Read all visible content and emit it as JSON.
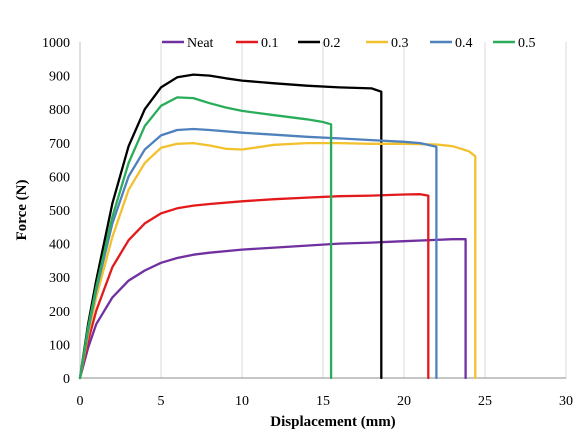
{
  "chart_data": {
    "type": "line",
    "title": "",
    "xlabel": "Displacement (mm)",
    "ylabel": "Force (N)",
    "xlim": [
      0,
      30
    ],
    "ylim": [
      0,
      1000
    ],
    "xticks": [
      0,
      5,
      10,
      15,
      20,
      25,
      30
    ],
    "yticks": [
      0,
      100,
      200,
      300,
      400,
      500,
      600,
      700,
      800,
      900,
      1000
    ],
    "grid": "vertical",
    "legend_position": "top",
    "series": [
      {
        "name": "Neat",
        "color": "#7030a0",
        "points": [
          [
            0,
            0
          ],
          [
            0.5,
            90
          ],
          [
            1,
            160
          ],
          [
            2,
            240
          ],
          [
            3,
            290
          ],
          [
            4,
            320
          ],
          [
            5,
            343
          ],
          [
            6,
            357
          ],
          [
            7,
            367
          ],
          [
            8,
            373
          ],
          [
            10,
            382
          ],
          [
            12,
            388
          ],
          [
            14,
            394
          ],
          [
            16,
            400
          ],
          [
            18,
            403
          ],
          [
            20,
            407
          ],
          [
            22,
            411
          ],
          [
            23,
            413
          ],
          [
            23.8,
            413
          ],
          [
            23.8,
            0
          ]
        ]
      },
      {
        "name": "0.1",
        "color": "#e31a1c",
        "points": [
          [
            0,
            0
          ],
          [
            0.5,
            110
          ],
          [
            1,
            200
          ],
          [
            2,
            330
          ],
          [
            3,
            410
          ],
          [
            4,
            460
          ],
          [
            5,
            490
          ],
          [
            6,
            505
          ],
          [
            7,
            513
          ],
          [
            8,
            518
          ],
          [
            10,
            526
          ],
          [
            12,
            532
          ],
          [
            14,
            537
          ],
          [
            16,
            541
          ],
          [
            18,
            543
          ],
          [
            20,
            546
          ],
          [
            21,
            547
          ],
          [
            21.5,
            543
          ],
          [
            21.5,
            0
          ]
        ]
      },
      {
        "name": "0.2",
        "color": "#000000",
        "points": [
          [
            0,
            0
          ],
          [
            0.5,
            160
          ],
          [
            1,
            290
          ],
          [
            2,
            520
          ],
          [
            3,
            690
          ],
          [
            4,
            800
          ],
          [
            5,
            865
          ],
          [
            6,
            895
          ],
          [
            7,
            903
          ],
          [
            8,
            900
          ],
          [
            9,
            892
          ],
          [
            10,
            885
          ],
          [
            12,
            877
          ],
          [
            14,
            870
          ],
          [
            16,
            865
          ],
          [
            18,
            862
          ],
          [
            18.6,
            852
          ],
          [
            18.6,
            0
          ]
        ]
      },
      {
        "name": "0.3",
        "color": "#f2c12e",
        "points": [
          [
            0,
            0
          ],
          [
            0.5,
            130
          ],
          [
            1,
            240
          ],
          [
            2,
            420
          ],
          [
            3,
            560
          ],
          [
            4,
            640
          ],
          [
            5,
            685
          ],
          [
            6,
            697
          ],
          [
            7,
            699
          ],
          [
            8,
            692
          ],
          [
            9,
            682
          ],
          [
            10,
            680
          ],
          [
            11,
            687
          ],
          [
            12,
            694
          ],
          [
            14,
            699
          ],
          [
            16,
            699
          ],
          [
            18,
            697
          ],
          [
            20,
            697
          ],
          [
            22,
            695
          ],
          [
            23,
            690
          ],
          [
            24,
            675
          ],
          [
            24.4,
            660
          ],
          [
            24.4,
            0
          ]
        ]
      },
      {
        "name": "0.4",
        "color": "#4f81bd",
        "points": [
          [
            0,
            0
          ],
          [
            0.5,
            140
          ],
          [
            1,
            260
          ],
          [
            2,
            460
          ],
          [
            3,
            600
          ],
          [
            4,
            680
          ],
          [
            5,
            722
          ],
          [
            6,
            738
          ],
          [
            7,
            741
          ],
          [
            8,
            738
          ],
          [
            10,
            730
          ],
          [
            12,
            724
          ],
          [
            14,
            718
          ],
          [
            16,
            713
          ],
          [
            18,
            708
          ],
          [
            20,
            703
          ],
          [
            21,
            699
          ],
          [
            22,
            688
          ],
          [
            22,
            0
          ]
        ]
      },
      {
        "name": "0.5",
        "color": "#2aad5a",
        "points": [
          [
            0,
            0
          ],
          [
            0.5,
            150
          ],
          [
            1,
            270
          ],
          [
            2,
            480
          ],
          [
            3,
            640
          ],
          [
            4,
            750
          ],
          [
            5,
            810
          ],
          [
            6,
            835
          ],
          [
            7,
            833
          ],
          [
            8,
            818
          ],
          [
            9,
            805
          ],
          [
            10,
            795
          ],
          [
            12,
            782
          ],
          [
            14,
            770
          ],
          [
            15,
            762
          ],
          [
            15.5,
            755
          ],
          [
            15.5,
            0
          ]
        ]
      }
    ]
  }
}
